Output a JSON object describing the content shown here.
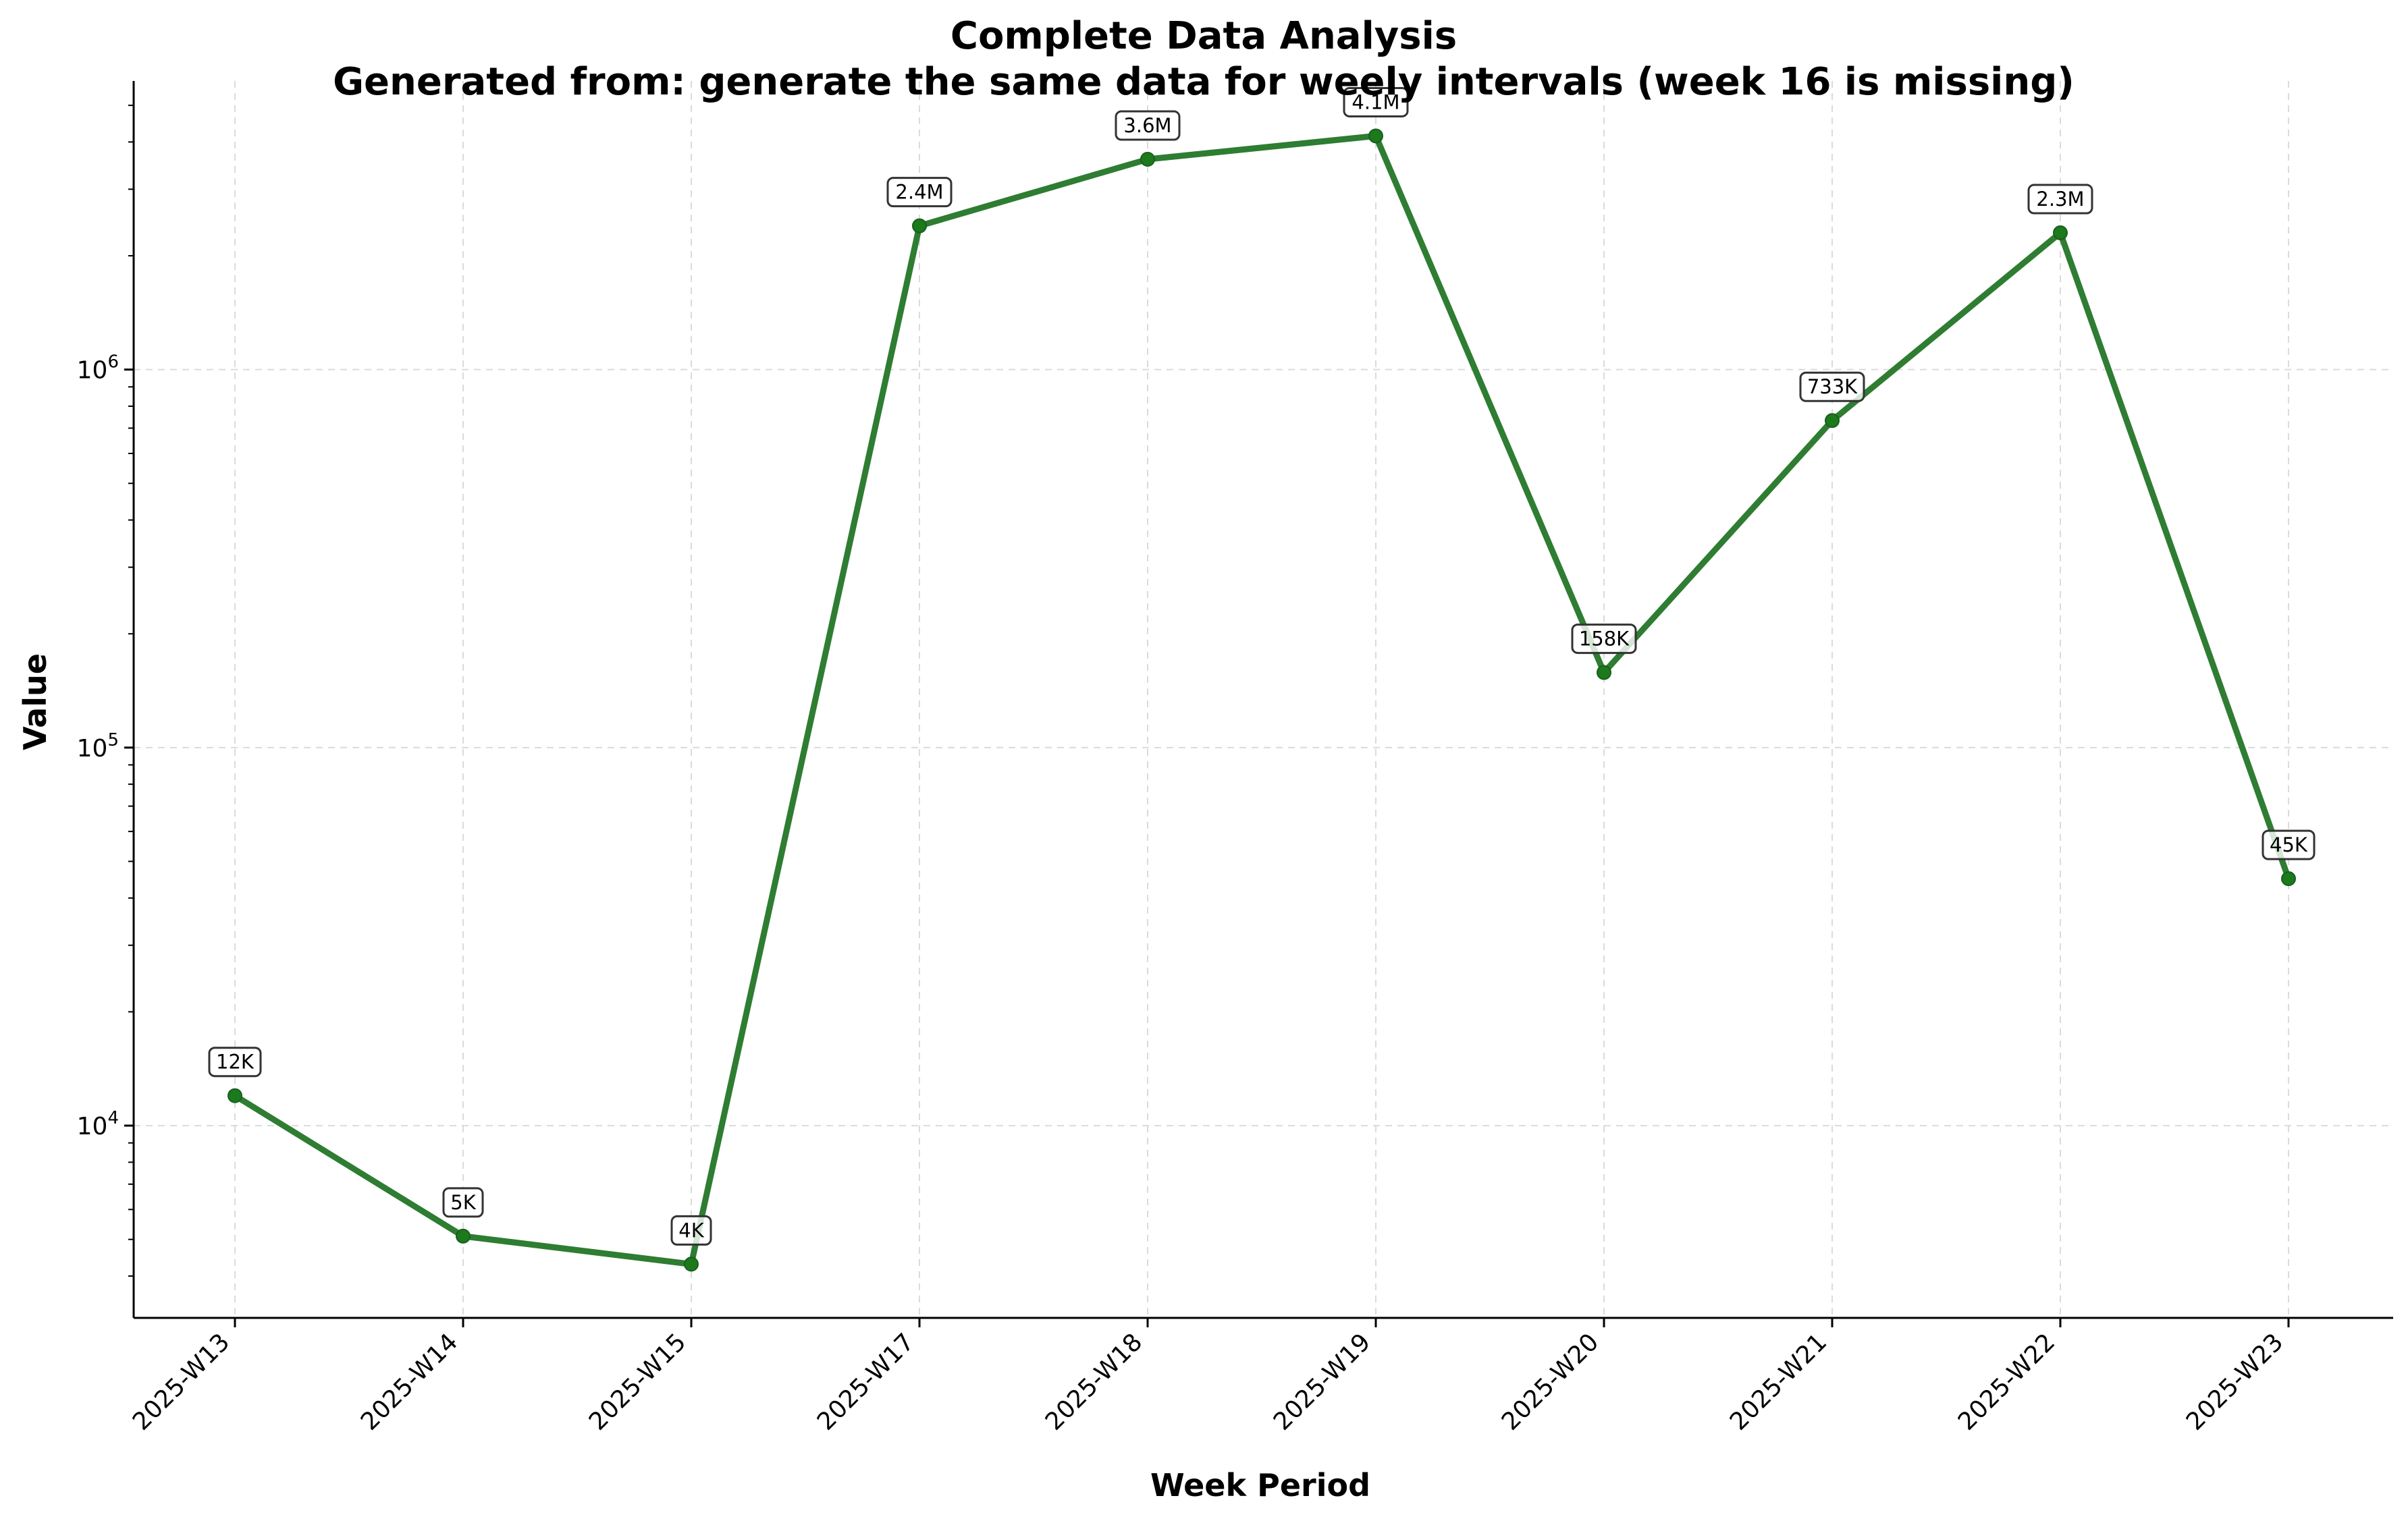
{
  "chart_data": {
    "type": "line",
    "title": "Complete Data Analysis",
    "subtitle": "Generated from: generate the same data for weely intervals (week 16 is missing)",
    "xlabel": "Week Period",
    "ylabel": "Value",
    "yscale": "log",
    "ylim": [
      3100,
      5800000
    ],
    "y_major_ticks": [
      {
        "value": 10000,
        "base": "10",
        "exp": "4"
      },
      {
        "value": 100000,
        "base": "10",
        "exp": "5"
      },
      {
        "value": 1000000,
        "base": "10",
        "exp": "6"
      }
    ],
    "grid": true,
    "line_color": "#2e7d32",
    "marker_color": "#1b7a1b",
    "categories": [
      "2025-W13",
      "2025-W14",
      "2025-W15",
      "2025-W17",
      "2025-W18",
      "2025-W19",
      "2025-W20",
      "2025-W21",
      "2025-W22",
      "2025-W23"
    ],
    "values": [
      12000,
      5100,
      4300,
      2400000,
      3600000,
      4150000,
      158000,
      733000,
      2300000,
      45000
    ],
    "data_labels": [
      "12K",
      "5K",
      "4K",
      "2.4M",
      "3.6M",
      "4.1M",
      "158K",
      "733K",
      "2.3M",
      "45K"
    ]
  }
}
